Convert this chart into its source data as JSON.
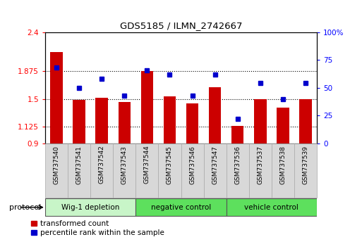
{
  "title": "GDS5185 / ILMN_2742667",
  "categories": [
    "GSM737540",
    "GSM737541",
    "GSM737542",
    "GSM737543",
    "GSM737544",
    "GSM737545",
    "GSM737546",
    "GSM737547",
    "GSM737536",
    "GSM737537",
    "GSM737538",
    "GSM737539"
  ],
  "red_values": [
    2.13,
    1.49,
    1.51,
    1.46,
    1.88,
    1.53,
    1.44,
    1.66,
    1.13,
    1.5,
    1.38,
    1.5
  ],
  "blue_values": [
    68,
    50,
    58,
    43,
    66,
    62,
    43,
    62,
    22,
    54,
    40,
    54
  ],
  "ylim_left": [
    0.9,
    2.4
  ],
  "ylim_right": [
    0,
    100
  ],
  "yticks_left": [
    0.9,
    1.125,
    1.5,
    1.875,
    2.4
  ],
  "ytick_labels_left": [
    "0.9",
    "1.125",
    "1.5",
    "1.875",
    "2.4"
  ],
  "yticks_right": [
    0,
    25,
    50,
    75,
    100
  ],
  "ytick_labels_right": [
    "0",
    "25",
    "50",
    "75",
    "100%"
  ],
  "groups": [
    {
      "label": "Wig-1 depletion",
      "start": 0,
      "end": 3,
      "color": "#c8f5c8"
    },
    {
      "label": "negative control",
      "start": 4,
      "end": 7,
      "color": "#5de05d"
    },
    {
      "label": "vehicle control",
      "start": 8,
      "end": 11,
      "color": "#5de05d"
    }
  ],
  "protocol_label": "protocol",
  "bar_color": "#cc0000",
  "blue_color": "#0000cc",
  "bar_bottom": 0.9,
  "bar_width": 0.55,
  "blue_marker_size": 4,
  "grid_dotted": [
    1.125,
    1.5,
    1.875
  ],
  "legend_red": "transformed count",
  "legend_blue": "percentile rank within the sample",
  "xticklabel_bg": "#d8d8d8",
  "plot_bg": "#ffffff"
}
